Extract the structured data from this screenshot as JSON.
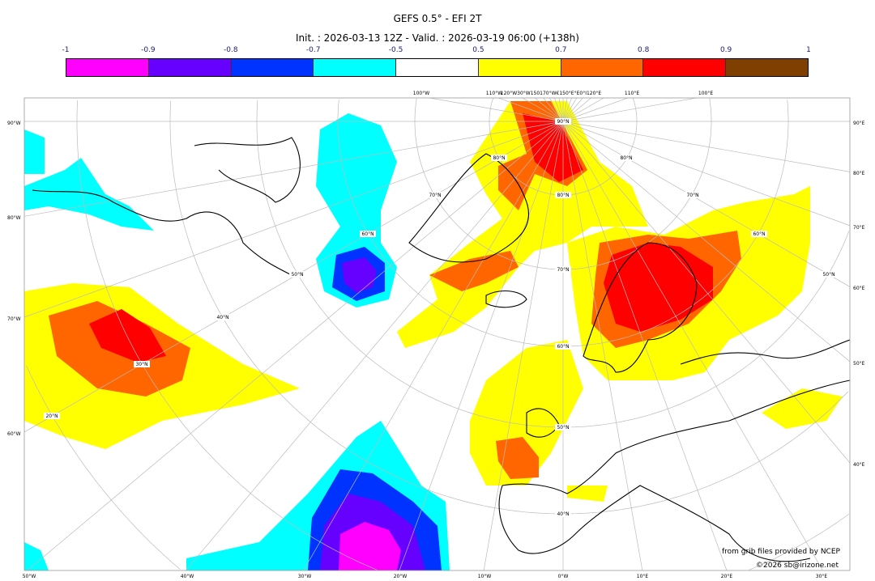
{
  "title": "GEFS 0.5° - EFI 2T",
  "subtitle": "Init. : 2026-03-13 12Z - Valid. : 2026-03-19 06:00 (+138h)",
  "colorbar": {
    "ticks": [
      "-1",
      "-0.9",
      "-0.8",
      "-0.7",
      "-0.5",
      "0.5",
      "0.7",
      "0.8",
      "0.9",
      "1"
    ],
    "colors": [
      "#ff00ff",
      "#6600ff",
      "#0033ff",
      "#00ffff",
      "#ffffff",
      "#ffff00",
      "#ff6600",
      "#ff0000",
      "#7f3f00"
    ]
  },
  "map": {
    "left_labels": [
      "90°W",
      "80°W",
      "70°W",
      "60°W"
    ],
    "right_labels": [
      "90°E",
      "80°E",
      "70°E",
      "60°E",
      "50°E",
      "40°E"
    ],
    "bottom_labels": [
      "50°W",
      "40°W",
      "30°W",
      "20°W",
      "10°W",
      "0°W",
      "10°E",
      "20°E",
      "30°E"
    ],
    "top_labels": [
      "100°W",
      "110°W",
      "120°W30°W150170°W€150°E°E0°I120°E",
      "110°E",
      "100°E"
    ],
    "interior_labels": [
      "90°N",
      "80°N",
      "80°N",
      "80°N",
      "70°N",
      "70°N",
      "70°N",
      "60°N",
      "60°N",
      "60°N",
      "50°N",
      "50°N",
      "50°N",
      "40°N",
      "40°N",
      "30°N",
      "20°N"
    ]
  },
  "credits": {
    "line1": "from grib files provided by NCEP",
    "line2": "©2026 sb@irizone.net"
  }
}
